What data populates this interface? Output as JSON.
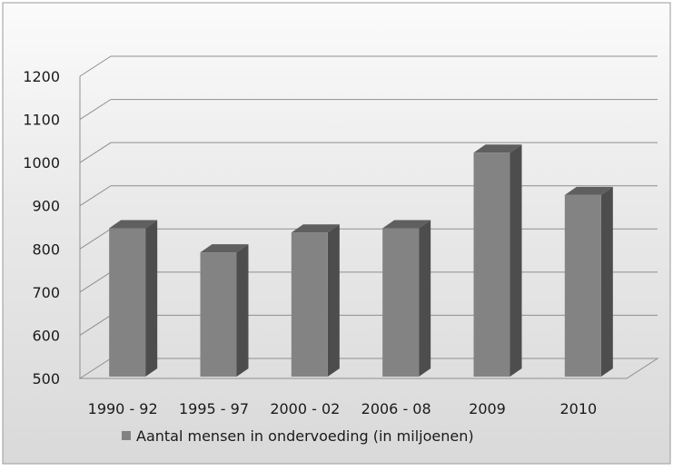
{
  "chart_data": {
    "type": "bar",
    "categories": [
      "1990 - 92",
      "1995 - 97",
      "2000 - 02",
      "2006 - 08",
      "2009",
      "2010"
    ],
    "series": [
      {
        "name": "Aantal mensen in ondervoeding (in miljoenen)",
        "values": [
          848,
          792,
          838,
          848,
          1023,
          925
        ]
      }
    ],
    "ylim": [
      500,
      1200
    ],
    "yticks": [
      500,
      600,
      700,
      800,
      900,
      1000,
      1100,
      1200
    ],
    "grid": true,
    "legend": "bottom",
    "style": "3d-column",
    "colors": {
      "bar_front": "#838383",
      "bar_side": "#4d4d4d",
      "bar_top": "#5f5f5f",
      "background": "#e8e8e8",
      "grid": "#8f8f8f"
    }
  }
}
